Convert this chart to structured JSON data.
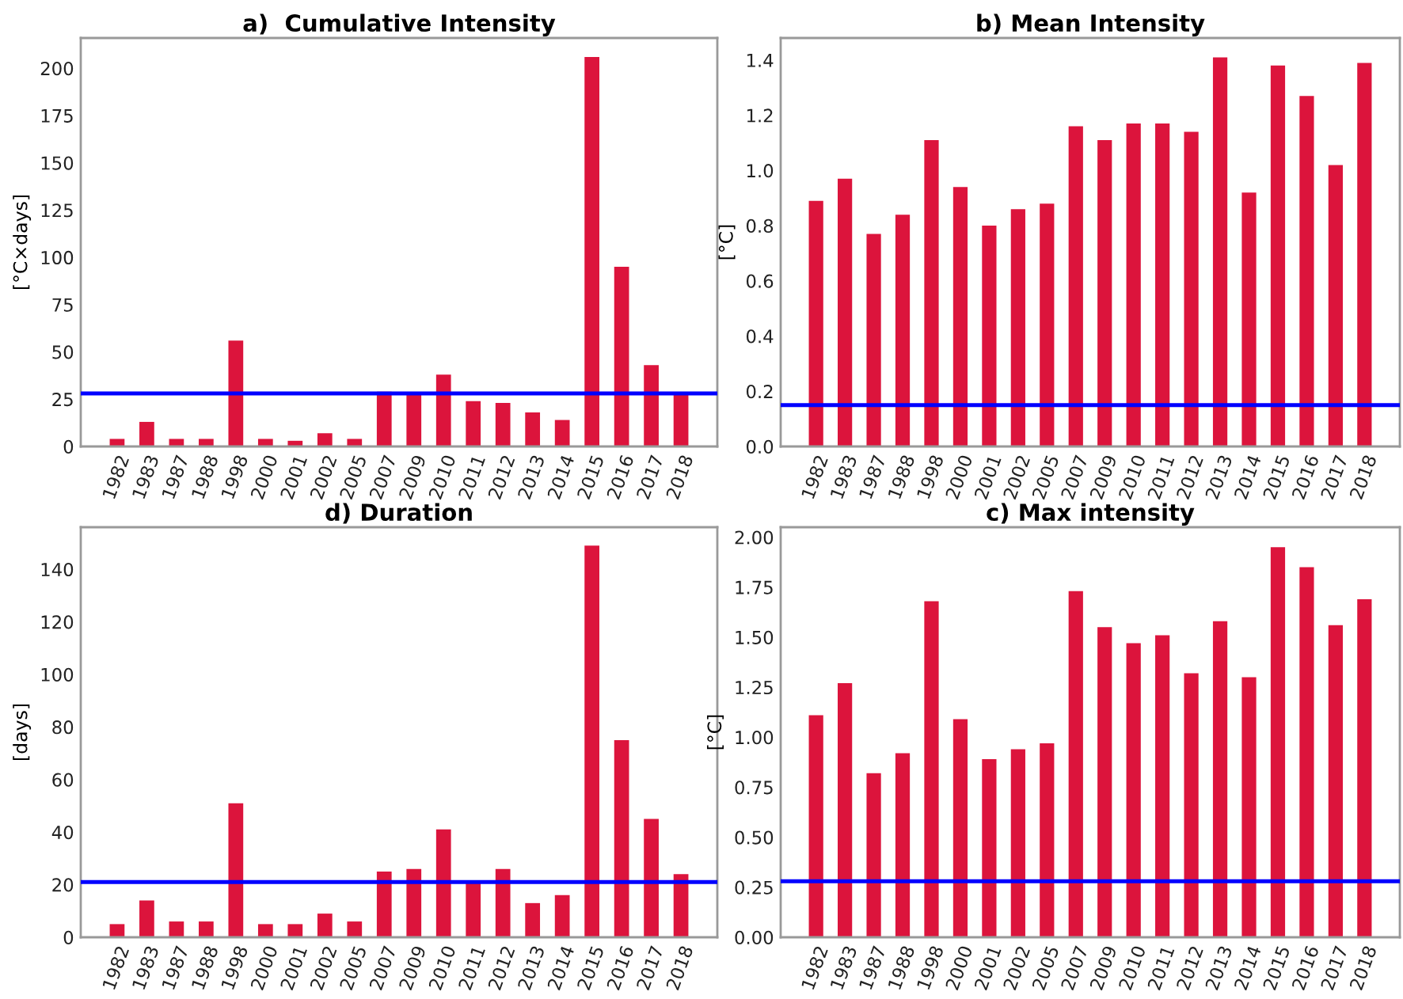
{
  "chart_data": [
    {
      "type": "bar",
      "title": "a)  Cumulative Intensity",
      "ylabel": "[°C×days]",
      "categories": [
        "1982",
        "1983",
        "1987",
        "1988",
        "1998",
        "2000",
        "2001",
        "2002",
        "2005",
        "2007",
        "2009",
        "2010",
        "2011",
        "2012",
        "2013",
        "2014",
        "2015",
        "2016",
        "2017",
        "2018"
      ],
      "values": [
        4,
        13,
        4,
        4,
        56,
        4,
        3,
        7,
        4,
        29,
        28,
        38,
        24,
        23,
        18,
        14,
        206,
        95,
        43,
        28
      ],
      "color": "#dc143c",
      "ylim": [
        0,
        216
      ],
      "yticks": [
        0,
        25,
        50,
        75,
        100,
        125,
        150,
        175,
        200
      ],
      "ref_lines": [
        {
          "axis": "y",
          "value": 28,
          "color": "#0000ff"
        }
      ],
      "grid": false,
      "legend": false
    },
    {
      "type": "bar",
      "title": "b) Mean Intensity",
      "ylabel": "[°C]",
      "categories": [
        "1982",
        "1983",
        "1987",
        "1988",
        "1998",
        "2000",
        "2001",
        "2002",
        "2005",
        "2007",
        "2009",
        "2010",
        "2011",
        "2012",
        "2013",
        "2014",
        "2015",
        "2016",
        "2017",
        "2018"
      ],
      "values": [
        0.89,
        0.97,
        0.77,
        0.84,
        1.11,
        0.94,
        0.8,
        0.86,
        0.88,
        1.16,
        1.11,
        1.17,
        1.17,
        1.14,
        1.41,
        0.92,
        1.38,
        1.27,
        1.02,
        1.39
      ],
      "color": "#dc143c",
      "ylim": [
        0,
        1.48
      ],
      "yticks": [
        {
          "value": 0,
          "label": "0.0"
        },
        {
          "value": 0.2,
          "label": "0.2"
        },
        {
          "value": 0.4,
          "label": "0.4"
        },
        {
          "value": 0.6,
          "label": "0.6"
        },
        {
          "value": 0.8,
          "label": "0.8"
        },
        {
          "value": 1,
          "label": "1.0"
        },
        {
          "value": 1.2,
          "label": "1.2"
        },
        {
          "value": 1.4,
          "label": "1.4"
        }
      ],
      "ref_lines": [
        {
          "axis": "y",
          "value": 0.15,
          "color": "#0000ff"
        }
      ],
      "grid": false,
      "legend": false
    },
    {
      "type": "bar",
      "title": "d) Duration",
      "ylabel": "[days]",
      "categories": [
        "1982",
        "1983",
        "1987",
        "1988",
        "1998",
        "2000",
        "2001",
        "2002",
        "2005",
        "2007",
        "2009",
        "2010",
        "2011",
        "2012",
        "2013",
        "2014",
        "2015",
        "2016",
        "2017",
        "2018"
      ],
      "values": [
        5,
        14,
        6,
        6,
        51,
        5,
        5,
        9,
        6,
        25,
        26,
        41,
        21,
        26,
        13,
        16,
        149,
        75,
        45,
        24
      ],
      "color": "#dc143c",
      "ylim": [
        0,
        156
      ],
      "yticks": [
        0,
        20,
        40,
        60,
        80,
        100,
        120,
        140
      ],
      "ref_lines": [
        {
          "axis": "y",
          "value": 21,
          "color": "#0000ff"
        }
      ],
      "grid": false,
      "legend": false
    },
    {
      "type": "bar",
      "title": "c) Max intensity",
      "ylabel": "[°C]",
      "categories": [
        "1982",
        "1983",
        "1987",
        "1988",
        "1998",
        "2000",
        "2001",
        "2002",
        "2005",
        "2007",
        "2009",
        "2010",
        "2011",
        "2012",
        "2013",
        "2014",
        "2015",
        "2016",
        "2017",
        "2018"
      ],
      "values": [
        1.11,
        1.27,
        0.82,
        0.92,
        1.68,
        1.09,
        0.89,
        0.94,
        0.97,
        1.73,
        1.55,
        1.47,
        1.51,
        1.32,
        1.58,
        1.3,
        1.95,
        1.85,
        1.56,
        1.69
      ],
      "color": "#dc143c",
      "ylim": [
        0,
        2.05
      ],
      "yticks": [
        {
          "value": 0,
          "label": "0.00"
        },
        {
          "value": 0.25,
          "label": "0.25"
        },
        {
          "value": 0.5,
          "label": "0.50"
        },
        {
          "value": 0.75,
          "label": "0.75"
        },
        {
          "value": 1,
          "label": "1.00"
        },
        {
          "value": 1.25,
          "label": "1.25"
        },
        {
          "value": 1.5,
          "label": "1.50"
        },
        {
          "value": 1.75,
          "label": "1.75"
        },
        {
          "value": 2,
          "label": "2.00"
        }
      ],
      "ref_lines": [
        {
          "axis": "y",
          "value": 0.28,
          "color": "#0000ff"
        }
      ],
      "grid": false,
      "legend": false
    }
  ]
}
